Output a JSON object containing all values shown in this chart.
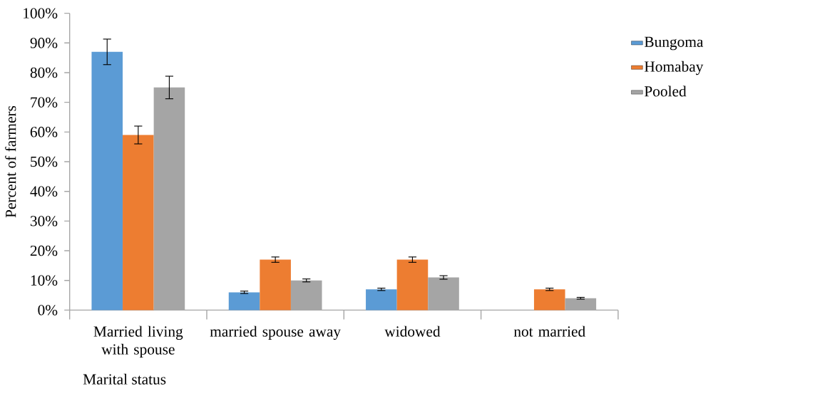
{
  "chart_data": {
    "type": "bar",
    "xlabel": "Marital status",
    "ylabel": "Percent of farmers",
    "categories": [
      "Married living with spouse",
      "married spouse away",
      "widowed",
      "not married"
    ],
    "series": [
      {
        "name": "Bungoma",
        "color": "#5b9bd5",
        "values": [
          87,
          6,
          7,
          0
        ],
        "errors": [
          4.3,
          0.4,
          0.4,
          null
        ]
      },
      {
        "name": "Homabay",
        "color": "#ed7d31",
        "values": [
          59,
          17,
          17,
          7
        ],
        "errors": [
          3,
          0.9,
          0.9,
          0.4
        ]
      },
      {
        "name": "Pooled",
        "color": "#a5a5a5",
        "values": [
          75,
          10,
          11,
          4
        ],
        "errors": [
          3.8,
          0.5,
          0.6,
          0.3
        ]
      }
    ],
    "ylim": [
      0,
      100
    ],
    "yticks": [
      {
        "value": 0,
        "label": "0%"
      },
      {
        "value": 10,
        "label": "10%"
      },
      {
        "value": 20,
        "label": "20%"
      },
      {
        "value": 30,
        "label": "30%"
      },
      {
        "value": 40,
        "label": "40%"
      },
      {
        "value": 50,
        "label": "50%"
      },
      {
        "value": 60,
        "label": "60%"
      },
      {
        "value": 70,
        "label": "70%"
      },
      {
        "value": 80,
        "label": "80%"
      },
      {
        "value": 90,
        "label": "90%"
      },
      {
        "value": 100,
        "label": "100%"
      }
    ],
    "grid": false,
    "legend": "right"
  }
}
